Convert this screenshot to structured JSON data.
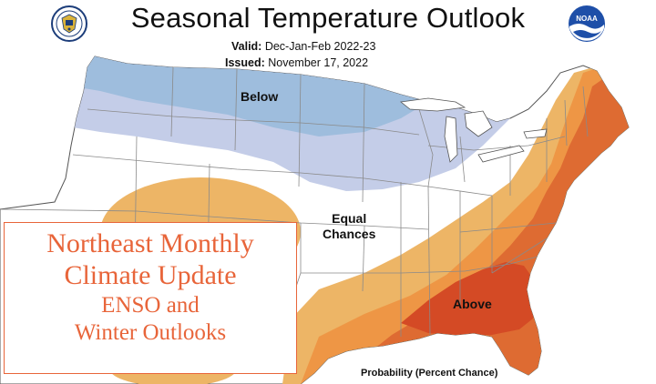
{
  "header": {
    "title": "Seasonal Temperature Outlook",
    "valid_label": "Valid:",
    "valid_value": "Dec-Jan-Feb 2022-23",
    "issued_label": "Issued:",
    "issued_value": "November 17, 2022"
  },
  "map": {
    "regions": {
      "below": "Below",
      "equal_line1": "Equal",
      "equal_line2": "Chances",
      "above": "Above"
    },
    "colors": {
      "below_dark": "#9ebddd",
      "below_light": "#c4cde8",
      "above_light": "#edb566",
      "above_mid": "#ee9645",
      "above_dark": "#de6b32",
      "above_darkest": "#d44a25",
      "equal": "#ffffff",
      "state_lines": "#8a8a8a"
    },
    "footer_label": "Probability (Percent Chance)"
  },
  "overlay": {
    "line1": "Northeast Monthly",
    "line2": "Climate Update",
    "line3": "ENSO and",
    "line4": "Winter Outlooks",
    "color": "#e8653a"
  },
  "logos": {
    "left": "commerce-seal-icon",
    "right": "noaa-logo-icon"
  }
}
